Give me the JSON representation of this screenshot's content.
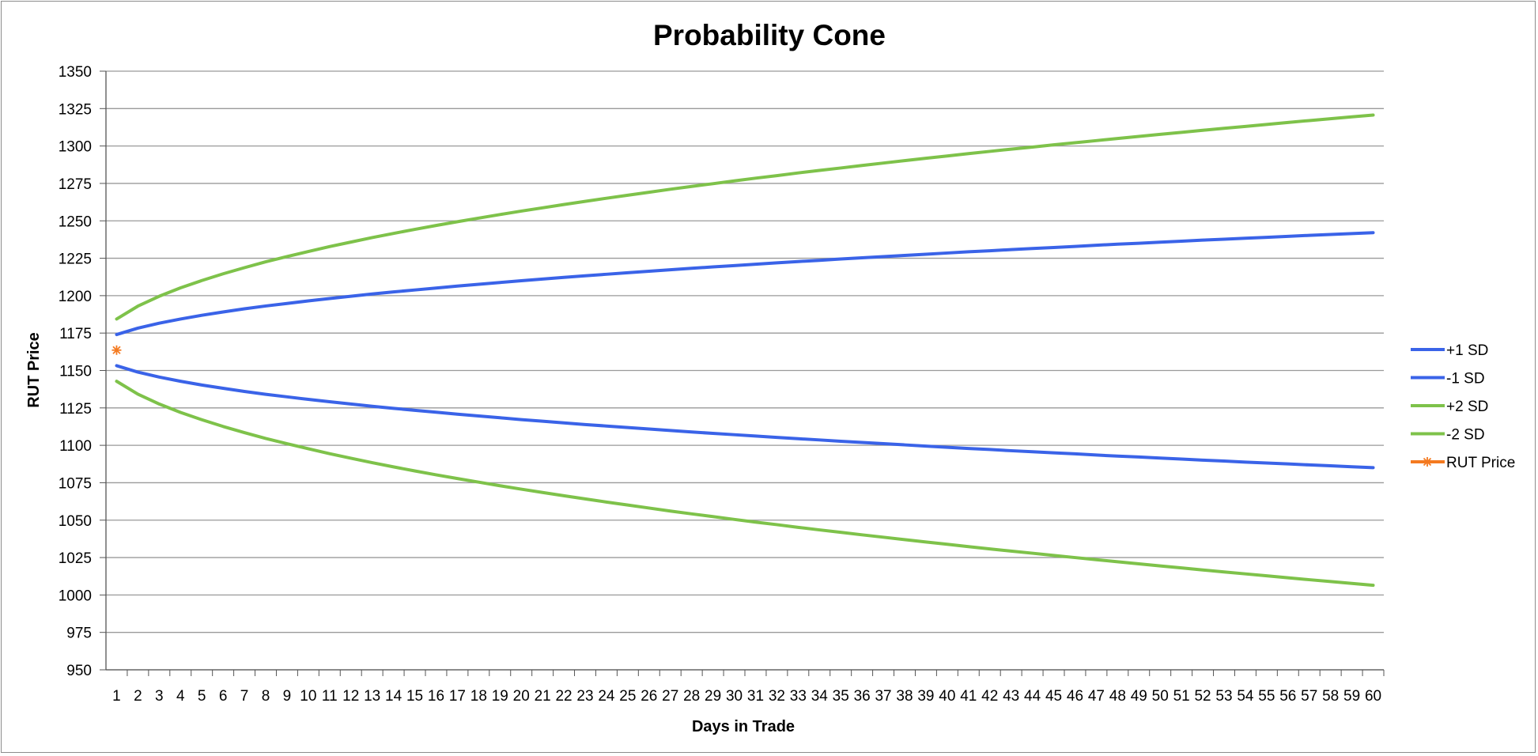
{
  "chart_data": {
    "type": "line",
    "title": "Probability Cone",
    "xlabel": "Days in Trade",
    "ylabel": "RUT Price",
    "ylim": [
      950,
      1350
    ],
    "yticks": [
      950,
      975,
      1000,
      1025,
      1050,
      1075,
      1100,
      1125,
      1150,
      1175,
      1200,
      1225,
      1250,
      1275,
      1300,
      1325,
      1350
    ],
    "x": [
      1,
      2,
      3,
      4,
      5,
      6,
      7,
      8,
      9,
      10,
      11,
      12,
      13,
      14,
      15,
      16,
      17,
      18,
      19,
      20,
      21,
      22,
      23,
      24,
      25,
      26,
      27,
      28,
      29,
      30,
      31,
      32,
      33,
      34,
      35,
      36,
      37,
      38,
      39,
      40,
      41,
      42,
      43,
      44,
      45,
      46,
      47,
      48,
      49,
      50,
      51,
      52,
      53,
      54,
      55,
      56,
      57,
      58,
      59,
      60
    ],
    "grid": true,
    "legend_position": "right",
    "center_price": 1163.6,
    "series": [
      {
        "name": "+1 SD",
        "color": "#3a63e8",
        "values": [
          1174.0,
          1178.3,
          1181.6,
          1184.4,
          1186.9,
          1189.1,
          1191.2,
          1193.1,
          1194.8,
          1196.5,
          1198.1,
          1199.6,
          1201.1,
          1202.5,
          1203.8,
          1205.1,
          1206.4,
          1207.6,
          1208.8,
          1210.0,
          1211.1,
          1212.2,
          1213.3,
          1214.3,
          1215.3,
          1216.3,
          1217.3,
          1218.3,
          1219.2,
          1220.1,
          1221.0,
          1221.9,
          1222.8,
          1223.6,
          1224.5,
          1225.3,
          1226.1,
          1226.9,
          1227.7,
          1228.5,
          1229.3,
          1230.0,
          1230.8,
          1231.5,
          1232.2,
          1232.9,
          1233.7,
          1234.4,
          1235.0,
          1235.7,
          1236.4,
          1237.1,
          1237.7,
          1238.4,
          1239.0,
          1239.6,
          1240.3,
          1240.9,
          1241.5,
          1242.1
        ]
      },
      {
        "name": "-1 SD",
        "color": "#3a63e8",
        "values": [
          1153.2,
          1148.9,
          1145.6,
          1142.8,
          1140.3,
          1138.1,
          1136.0,
          1134.1,
          1132.4,
          1130.7,
          1129.1,
          1127.6,
          1126.1,
          1124.7,
          1123.4,
          1122.1,
          1120.8,
          1119.6,
          1118.4,
          1117.2,
          1116.1,
          1115.0,
          1113.9,
          1112.9,
          1111.9,
          1110.9,
          1109.9,
          1108.9,
          1108.0,
          1107.1,
          1106.2,
          1105.3,
          1104.4,
          1103.6,
          1102.7,
          1101.9,
          1101.1,
          1100.3,
          1099.5,
          1098.7,
          1097.9,
          1097.2,
          1096.4,
          1095.7,
          1095.0,
          1094.3,
          1093.5,
          1092.8,
          1092.2,
          1091.5,
          1090.8,
          1090.1,
          1089.5,
          1088.8,
          1088.2,
          1087.6,
          1086.9,
          1086.3,
          1085.7,
          1085.1
        ]
      },
      {
        "name": "+2 SD",
        "color": "#7ec24a",
        "values": [
          1184.4,
          1193.0,
          1199.6,
          1205.2,
          1210.1,
          1214.6,
          1218.7,
          1222.6,
          1226.1,
          1229.5,
          1232.8,
          1235.8,
          1238.8,
          1241.6,
          1244.3,
          1246.9,
          1249.4,
          1251.8,
          1254.2,
          1256.5,
          1258.7,
          1260.9,
          1263.0,
          1265.1,
          1267.1,
          1269.1,
          1271.1,
          1273.0,
          1274.8,
          1276.7,
          1278.5,
          1280.2,
          1282.0,
          1283.7,
          1285.3,
          1287.0,
          1288.6,
          1290.2,
          1291.8,
          1293.3,
          1294.9,
          1296.4,
          1297.9,
          1299.3,
          1300.8,
          1302.2,
          1303.6,
          1305.0,
          1306.4,
          1307.8,
          1309.1,
          1310.5,
          1311.8,
          1313.1,
          1314.4,
          1315.7,
          1317.0,
          1318.2,
          1319.5,
          1320.7
        ]
      },
      {
        "name": "-2 SD",
        "color": "#7ec24a",
        "values": [
          1142.8,
          1134.2,
          1127.6,
          1122.0,
          1117.1,
          1112.6,
          1108.5,
          1104.6,
          1101.1,
          1097.7,
          1094.4,
          1091.4,
          1088.4,
          1085.6,
          1082.9,
          1080.3,
          1077.8,
          1075.4,
          1073.0,
          1070.7,
          1068.5,
          1066.3,
          1064.2,
          1062.1,
          1060.1,
          1058.1,
          1056.1,
          1054.2,
          1052.4,
          1050.5,
          1048.7,
          1047.0,
          1045.2,
          1043.5,
          1041.9,
          1040.2,
          1038.6,
          1037.0,
          1035.4,
          1033.9,
          1032.3,
          1030.8,
          1029.3,
          1027.9,
          1026.4,
          1025.0,
          1023.6,
          1022.2,
          1020.8,
          1019.4,
          1018.1,
          1016.7,
          1015.4,
          1014.1,
          1012.8,
          1011.5,
          1010.2,
          1009.0,
          1007.7,
          1006.5
        ]
      },
      {
        "name": "RUT Price",
        "color": "#f47a20",
        "marker": "asterisk",
        "points": [
          {
            "x": 1,
            "y": 1163.6
          }
        ]
      }
    ]
  }
}
